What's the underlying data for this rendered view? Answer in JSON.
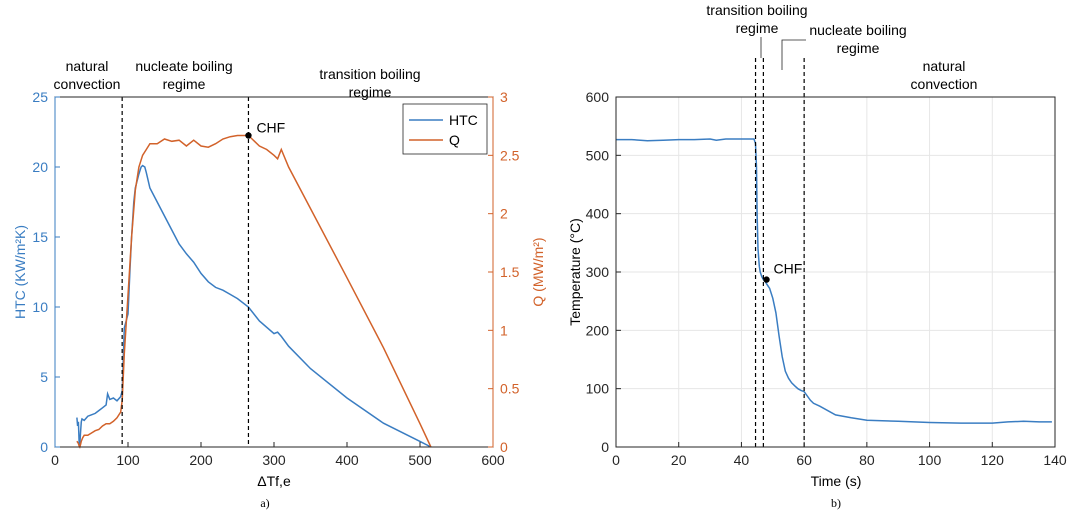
{
  "colors": {
    "htc": "#3a7dc2",
    "q": "#d2622a",
    "axis": "#262626",
    "grid": "#e6e6e6"
  },
  "chart_data": [
    {
      "type": "line",
      "caption": "a)",
      "xlabel": "ΔTf,e",
      "ylabel_left": "HTC (KW/m²K)",
      "ylabel_right": "Q (MW/m²)",
      "xlim": [
        0,
        600
      ],
      "ylim_left": [
        0,
        25
      ],
      "ylim_right": [
        0,
        3
      ],
      "xticks": [
        "0",
        "100",
        "200",
        "300",
        "400",
        "500",
        "600"
      ],
      "yticks_left": [
        "0",
        "5",
        "10",
        "15",
        "20",
        "25"
      ],
      "yticks_right": [
        "0",
        "0.5",
        "1",
        "1.5",
        "2",
        "2.5",
        "3"
      ],
      "grid": false,
      "legend_position": "top-right",
      "regions": [
        {
          "line1": "natural",
          "line2": "convection"
        },
        {
          "line1": "nucleate boiling",
          "line2": "regime"
        },
        {
          "line1": "transition boiling",
          "line2": "regime"
        }
      ],
      "vlines": [
        92,
        265
      ],
      "annotation": {
        "text": "CHF",
        "x": 265,
        "y": 2.67
      },
      "series": [
        {
          "name": "HTC",
          "axis": "left",
          "x": [
            30,
            31,
            32,
            33,
            34,
            35,
            36,
            37,
            40,
            45,
            50,
            55,
            60,
            65,
            70,
            72,
            75,
            80,
            85,
            90,
            92,
            95,
            100,
            103,
            105,
            108,
            110,
            115,
            118,
            120,
            123,
            125,
            130,
            140,
            150,
            160,
            170,
            180,
            190,
            200,
            210,
            220,
            230,
            240,
            250,
            265,
            280,
            300,
            305,
            310,
            320,
            350,
            400,
            450,
            500,
            515
          ],
          "y": [
            2.1,
            1.5,
            1.8,
            0.4,
            0.1,
            1.0,
            1.8,
            2.0,
            1.9,
            2.2,
            2.3,
            2.4,
            2.6,
            2.8,
            3.0,
            3.8,
            3.4,
            3.5,
            3.3,
            3.6,
            4.0,
            8.5,
            9.5,
            13.0,
            15.0,
            17.5,
            18.5,
            19.5,
            20.0,
            20.1,
            20.0,
            19.6,
            18.5,
            17.5,
            16.5,
            15.5,
            14.5,
            13.8,
            13.2,
            12.4,
            11.8,
            11.4,
            11.2,
            10.9,
            10.6,
            10.0,
            9.0,
            8.1,
            8.2,
            7.9,
            7.2,
            5.6,
            3.5,
            1.7,
            0.4,
            0
          ]
        },
        {
          "name": "Q",
          "axis": "right",
          "x": [
            30,
            32,
            33,
            34,
            35,
            36,
            38,
            40,
            45,
            50,
            55,
            60,
            65,
            70,
            75,
            80,
            85,
            90,
            92,
            95,
            100,
            105,
            110,
            115,
            120,
            125,
            130,
            140,
            150,
            160,
            170,
            180,
            190,
            200,
            210,
            220,
            230,
            240,
            250,
            260,
            265,
            270,
            280,
            290,
            300,
            305,
            310,
            320,
            400,
            450,
            500,
            515
          ],
          "y": [
            0.05,
            0.03,
            0.01,
            0.0,
            0.02,
            0.05,
            0.08,
            0.1,
            0.1,
            0.12,
            0.14,
            0.15,
            0.18,
            0.2,
            0.2,
            0.22,
            0.25,
            0.3,
            0.4,
            0.8,
            1.3,
            1.8,
            2.2,
            2.4,
            2.5,
            2.55,
            2.6,
            2.6,
            2.64,
            2.62,
            2.63,
            2.58,
            2.63,
            2.58,
            2.57,
            2.6,
            2.64,
            2.66,
            2.67,
            2.67,
            2.67,
            2.64,
            2.58,
            2.55,
            2.5,
            2.47,
            2.55,
            2.4,
            1.45,
            0.85,
            0.2,
            0
          ]
        }
      ]
    },
    {
      "type": "line",
      "caption": "b)",
      "xlabel": "Time (s)",
      "ylabel": "Temperature (°C)",
      "xlim": [
        0,
        140
      ],
      "ylim": [
        0,
        600
      ],
      "xticks": [
        "0",
        "20",
        "40",
        "60",
        "80",
        "100",
        "120",
        "140"
      ],
      "yticks": [
        "0",
        "100",
        "200",
        "300",
        "400",
        "500",
        "600"
      ],
      "grid": true,
      "top_labels": [
        {
          "line1": "transition boiling",
          "line2": "regime"
        },
        {
          "line1": "nucleate boiling",
          "line2": "regime"
        },
        {
          "line1": "natural",
          "line2": "convection"
        }
      ],
      "vlines": [
        44.5,
        47,
        60
      ],
      "annotation": {
        "text": "CHF",
        "x": 48,
        "y": 287
      },
      "series": [
        {
          "name": "Temperature",
          "axis": "left",
          "x": [
            0,
            5,
            10,
            15,
            20,
            25,
            30,
            32,
            35,
            40,
            44,
            44.5,
            44.8,
            45,
            45.3,
            45.7,
            46,
            46.5,
            47,
            47.5,
            48,
            49,
            50,
            51,
            52,
            53,
            54,
            55,
            56,
            57,
            58,
            59,
            60,
            62,
            63,
            65,
            70,
            75,
            80,
            90,
            100,
            110,
            120,
            125,
            130,
            135,
            139
          ],
          "y": [
            527,
            527,
            525,
            526,
            527,
            527,
            528,
            526,
            528,
            528,
            528,
            520,
            480,
            400,
            340,
            310,
            300,
            292,
            287,
            285,
            280,
            272,
            255,
            230,
            190,
            155,
            130,
            118,
            110,
            105,
            100,
            97,
            95,
            80,
            75,
            70,
            55,
            50,
            46,
            44,
            42,
            41,
            41,
            43,
            44,
            43,
            43
          ]
        }
      ]
    }
  ]
}
